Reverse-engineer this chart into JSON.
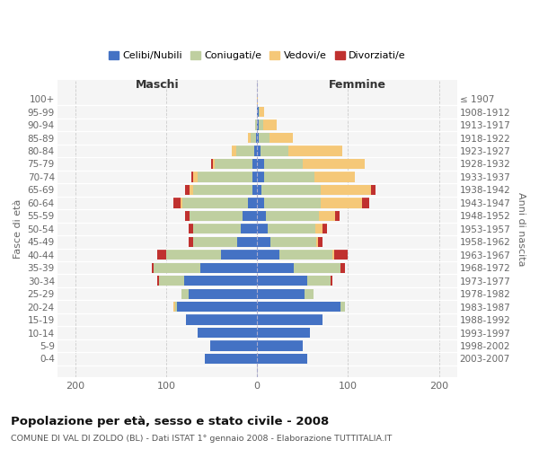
{
  "age_groups": [
    "100+",
    "95-99",
    "90-94",
    "85-89",
    "80-84",
    "75-79",
    "70-74",
    "65-69",
    "60-64",
    "55-59",
    "50-54",
    "45-49",
    "40-44",
    "35-39",
    "30-34",
    "25-29",
    "20-24",
    "15-19",
    "10-14",
    "5-9",
    "0-4"
  ],
  "birth_years": [
    "≤ 1907",
    "1908-1912",
    "1913-1917",
    "1918-1922",
    "1923-1927",
    "1928-1932",
    "1933-1937",
    "1938-1942",
    "1943-1947",
    "1948-1952",
    "1953-1957",
    "1958-1962",
    "1963-1967",
    "1968-1972",
    "1973-1977",
    "1978-1982",
    "1983-1987",
    "1988-1992",
    "1993-1997",
    "1998-2002",
    "2003-2007"
  ],
  "colors": {
    "celibi": "#4472C4",
    "coniugati": "#BFCFA0",
    "vedovi": "#F5C878",
    "divorziati": "#C0312F"
  },
  "males": {
    "celibi": [
      0,
      0,
      0,
      1,
      3,
      5,
      5,
      5,
      10,
      16,
      18,
      22,
      40,
      62,
      80,
      75,
      88,
      78,
      65,
      52,
      58
    ],
    "coniugati": [
      0,
      0,
      2,
      6,
      20,
      42,
      60,
      65,
      72,
      58,
      52,
      48,
      60,
      52,
      28,
      8,
      2,
      0,
      0,
      0,
      0
    ],
    "vedovi": [
      0,
      0,
      0,
      3,
      5,
      2,
      5,
      4,
      2,
      0,
      0,
      0,
      0,
      0,
      0,
      0,
      2,
      0,
      0,
      0,
      0
    ],
    "divorziati": [
      0,
      0,
      0,
      0,
      0,
      2,
      2,
      5,
      8,
      5,
      5,
      5,
      10,
      2,
      2,
      0,
      0,
      0,
      0,
      0,
      0
    ]
  },
  "females": {
    "celibi": [
      0,
      2,
      2,
      2,
      4,
      8,
      8,
      5,
      8,
      10,
      12,
      15,
      25,
      40,
      55,
      52,
      92,
      72,
      58,
      50,
      55
    ],
    "coniugati": [
      0,
      1,
      5,
      12,
      30,
      42,
      55,
      65,
      62,
      58,
      52,
      50,
      58,
      52,
      26,
      10,
      5,
      0,
      0,
      0,
      0
    ],
    "vedovi": [
      1,
      5,
      15,
      25,
      60,
      68,
      45,
      55,
      45,
      18,
      8,
      2,
      2,
      0,
      0,
      0,
      0,
      0,
      0,
      0,
      0
    ],
    "divorziati": [
      0,
      0,
      0,
      0,
      0,
      0,
      0,
      5,
      8,
      5,
      5,
      5,
      15,
      5,
      2,
      0,
      0,
      0,
      0,
      0,
      0
    ]
  },
  "xlim": [
    -220,
    220
  ],
  "xticks": [
    -200,
    -100,
    0,
    100,
    200
  ],
  "xtick_labels": [
    "200",
    "100",
    "0",
    "100",
    "200"
  ],
  "title": "Popolazione per età, sesso e stato civile - 2008",
  "subtitle": "COMUNE DI VAL DI ZOLDO (BL) - Dati ISTAT 1° gennaio 2008 - Elaborazione TUTTITALIA.IT",
  "ylabel_left": "Fasce di età",
  "ylabel_right": "Anni di nascita",
  "header_left": "Maschi",
  "header_right": "Femmine",
  "legend_labels": [
    "Celibi/Nubili",
    "Coniugati/e",
    "Vedovi/e",
    "Divorziati/e"
  ],
  "bg_color": "#f5f5f5"
}
